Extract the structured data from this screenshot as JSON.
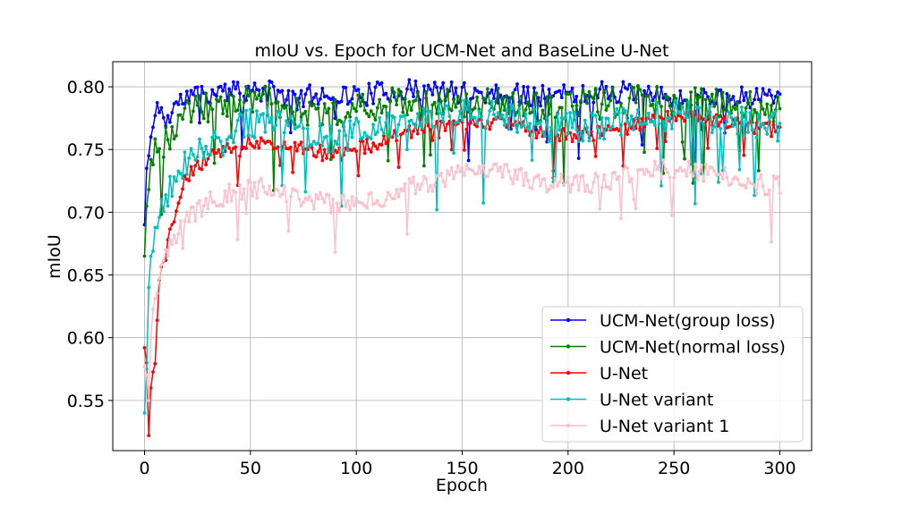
{
  "chart_data": {
    "type": "line",
    "title": "mIoU vs. Epoch for UCM-Net and BaseLine U-Net",
    "xlabel": "Epoch",
    "ylabel": "mIoU",
    "xlim": [
      -15,
      315
    ],
    "ylim": [
      0.51,
      0.82
    ],
    "xticks": [
      0,
      50,
      100,
      150,
      200,
      250,
      300
    ],
    "xtick_labels": [
      "0",
      "50",
      "100",
      "150",
      "200",
      "250",
      "300"
    ],
    "yticks": [
      0.55,
      0.6,
      0.65,
      0.7,
      0.75,
      0.8
    ],
    "ytick_labels": [
      "0.55",
      "0.60",
      "0.65",
      "0.70",
      "0.75",
      "0.80"
    ],
    "grid": true,
    "legend_position": "lower-right",
    "n_points": 301,
    "series": [
      {
        "name": "UCM-Net(group loss)",
        "color": "#0000ff",
        "knots": [
          [
            0,
            0.69
          ],
          [
            1,
            0.735
          ],
          [
            2,
            0.745
          ],
          [
            3,
            0.76
          ],
          [
            5,
            0.775
          ],
          [
            7,
            0.787
          ],
          [
            10,
            0.77
          ],
          [
            14,
            0.785
          ],
          [
            20,
            0.792
          ],
          [
            30,
            0.795
          ],
          [
            40,
            0.796
          ],
          [
            60,
            0.796
          ],
          [
            70,
            0.79
          ],
          [
            85,
            0.795
          ],
          [
            100,
            0.793
          ],
          [
            120,
            0.797
          ],
          [
            150,
            0.795
          ],
          [
            200,
            0.793
          ],
          [
            220,
            0.797
          ],
          [
            240,
            0.792
          ],
          [
            260,
            0.79
          ],
          [
            280,
            0.791
          ],
          [
            300,
            0.794
          ]
        ],
        "noise": 0.009,
        "seed": 11
      },
      {
        "name": "UCM-Net(normal loss)",
        "color": "#008000",
        "knots": [
          [
            0,
            0.665
          ],
          [
            1,
            0.705
          ],
          [
            2,
            0.718
          ],
          [
            3,
            0.742
          ],
          [
            5,
            0.755
          ],
          [
            8,
            0.748
          ],
          [
            12,
            0.762
          ],
          [
            20,
            0.778
          ],
          [
            30,
            0.785
          ],
          [
            40,
            0.788
          ],
          [
            60,
            0.788
          ],
          [
            70,
            0.78
          ],
          [
            90,
            0.778
          ],
          [
            100,
            0.785
          ],
          [
            120,
            0.788
          ],
          [
            150,
            0.788
          ],
          [
            200,
            0.783
          ],
          [
            220,
            0.788
          ],
          [
            250,
            0.788
          ],
          [
            280,
            0.786
          ],
          [
            300,
            0.782
          ]
        ],
        "noise": 0.013,
        "seed": 23
      },
      {
        "name": "U-Net",
        "color": "#ff0000",
        "knots": [
          [
            0,
            0.592
          ],
          [
            1,
            0.58
          ],
          [
            2,
            0.522
          ],
          [
            3,
            0.56
          ],
          [
            5,
            0.585
          ],
          [
            7,
            0.65
          ],
          [
            10,
            0.665
          ],
          [
            15,
            0.705
          ],
          [
            20,
            0.728
          ],
          [
            30,
            0.745
          ],
          [
            45,
            0.755
          ],
          [
            60,
            0.757
          ],
          [
            70,
            0.752
          ],
          [
            90,
            0.745
          ],
          [
            110,
            0.755
          ],
          [
            130,
            0.768
          ],
          [
            150,
            0.772
          ],
          [
            170,
            0.77
          ],
          [
            190,
            0.762
          ],
          [
            210,
            0.762
          ],
          [
            230,
            0.768
          ],
          [
            250,
            0.776
          ],
          [
            270,
            0.775
          ],
          [
            290,
            0.768
          ],
          [
            300,
            0.765
          ]
        ],
        "noise": 0.006,
        "seed": 37
      },
      {
        "name": "U-Net variant",
        "color": "#00bfbf",
        "knots": [
          [
            0,
            0.54
          ],
          [
            1,
            0.575
          ],
          [
            2,
            0.64
          ],
          [
            3,
            0.665
          ],
          [
            5,
            0.69
          ],
          [
            8,
            0.7
          ],
          [
            12,
            0.72
          ],
          [
            20,
            0.74
          ],
          [
            30,
            0.755
          ],
          [
            45,
            0.768
          ],
          [
            60,
            0.775
          ],
          [
            75,
            0.765
          ],
          [
            90,
            0.757
          ],
          [
            110,
            0.77
          ],
          [
            130,
            0.776
          ],
          [
            150,
            0.778
          ],
          [
            170,
            0.778
          ],
          [
            190,
            0.768
          ],
          [
            210,
            0.768
          ],
          [
            230,
            0.772
          ],
          [
            250,
            0.778
          ],
          [
            270,
            0.775
          ],
          [
            290,
            0.77
          ],
          [
            300,
            0.768
          ]
        ],
        "noise": 0.012,
        "seed": 51
      },
      {
        "name": "U-Net variant 1",
        "color": "#ffc0cb",
        "knots": [
          [
            0,
            0.577
          ],
          [
            1,
            0.57
          ],
          [
            2,
            0.55
          ],
          [
            3,
            0.6
          ],
          [
            5,
            0.63
          ],
          [
            8,
            0.655
          ],
          [
            12,
            0.675
          ],
          [
            20,
            0.695
          ],
          [
            30,
            0.708
          ],
          [
            45,
            0.718
          ],
          [
            60,
            0.72
          ],
          [
            75,
            0.712
          ],
          [
            90,
            0.705
          ],
          [
            110,
            0.71
          ],
          [
            130,
            0.722
          ],
          [
            150,
            0.73
          ],
          [
            170,
            0.732
          ],
          [
            190,
            0.724
          ],
          [
            210,
            0.722
          ],
          [
            230,
            0.73
          ],
          [
            250,
            0.735
          ],
          [
            270,
            0.732
          ],
          [
            290,
            0.722
          ],
          [
            300,
            0.722
          ]
        ],
        "noise": 0.008,
        "seed": 67
      }
    ]
  }
}
